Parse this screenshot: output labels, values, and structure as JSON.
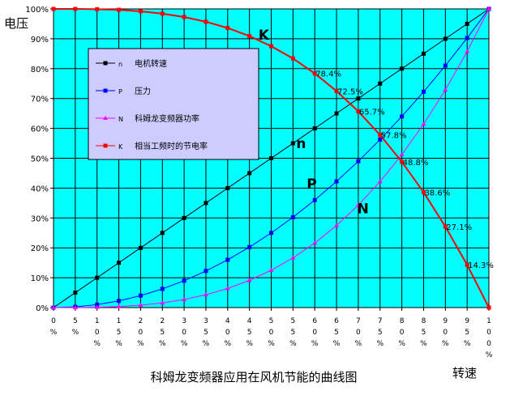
{
  "chart_data": {
    "type": "line",
    "title": "科姆龙变频器应用在风机节能的曲线图",
    "xlabel": "转速",
    "ylabel": "电压",
    "x": [
      0,
      5,
      10,
      15,
      20,
      25,
      30,
      35,
      40,
      45,
      50,
      55,
      60,
      65,
      70,
      75,
      80,
      85,
      90,
      95,
      100
    ],
    "x_tick_labels": [
      "0\n%",
      "5\n%",
      "1\n0\n%",
      "1\n5\n%",
      "2\n0\n%",
      "2\n5\n%",
      "3\n0\n%",
      "3\n5\n%",
      "4\n0\n%",
      "4\n5\n%",
      "5\n0\n%",
      "5\n5\n%",
      "6\n0\n%",
      "6\n5\n%",
      "7\n0\n%",
      "7\n5\n%",
      "8\n0\n%",
      "8\n5\n%",
      "9\n0\n%",
      "9\n5\n%",
      "1\n0\n0\n%"
    ],
    "y_tick_labels": [
      "0%",
      "10%",
      "20%",
      "30%",
      "40%",
      "50%",
      "60%",
      "70%",
      "80%",
      "90%",
      "100%"
    ],
    "xlim": [
      0,
      100
    ],
    "ylim": [
      0,
      100
    ],
    "grid": true,
    "legend_position": "upper-left",
    "plot_background": "#00FFFF",
    "legend_background": "#CCCCFF",
    "series": [
      {
        "name": "n 电机转速",
        "legend_label": "电机转速",
        "legend_letter": "n",
        "letter_label": "n",
        "color": "#000000",
        "marker": "square",
        "values": [
          0,
          5,
          10,
          15,
          20,
          25,
          30,
          35,
          40,
          45,
          50,
          55,
          60,
          65,
          70,
          75,
          80,
          85,
          90,
          95,
          100
        ]
      },
      {
        "name": "P 压力",
        "legend_label": "压力",
        "legend_letter": "P",
        "letter_label": "P",
        "color": "#0000FF",
        "marker": "square",
        "values": [
          0,
          0.25,
          1,
          2.25,
          4,
          6.25,
          9,
          12.25,
          16,
          20.25,
          25,
          30.25,
          36,
          42.25,
          49,
          56.25,
          64,
          72.25,
          81,
          90.25,
          100
        ]
      },
      {
        "name": "N 科姆龙变频器功率",
        "legend_label": "科姆龙变频器功率",
        "legend_letter": "N",
        "letter_label": "N",
        "color": "#FF00FF",
        "marker": "triangle",
        "values": [
          0,
          0.01,
          0.1,
          0.34,
          0.8,
          1.56,
          2.7,
          4.29,
          6.4,
          9.11,
          12.5,
          16.64,
          21.6,
          27.46,
          34.3,
          42.19,
          51.2,
          61.41,
          72.9,
          85.74,
          100
        ]
      },
      {
        "name": "K 相当工频时的节电率",
        "legend_label": "相当工频时的节电率",
        "legend_letter": "K",
        "letter_label": "K",
        "color": "#FF0000",
        "marker": "square",
        "values": [
          100,
          100,
          99.9,
          99.7,
          99.2,
          98.4,
          97.3,
          95.7,
          93.6,
          90.9,
          87.5,
          83.4,
          78.4,
          72.5,
          65.7,
          57.8,
          48.8,
          38.6,
          27.1,
          14.3,
          0
        ],
        "data_labels": [
          {
            "x": 60,
            "text": "78.4%"
          },
          {
            "x": 65,
            "text": "72.5%"
          },
          {
            "x": 70,
            "text": "65.7%"
          },
          {
            "x": 75,
            "text": "57.8%"
          },
          {
            "x": 80,
            "text": "48.8%"
          },
          {
            "x": 85,
            "text": "38.6%"
          },
          {
            "x": 90,
            "text": "27.1%"
          },
          {
            "x": 95,
            "text": "14.3%"
          }
        ]
      }
    ]
  }
}
